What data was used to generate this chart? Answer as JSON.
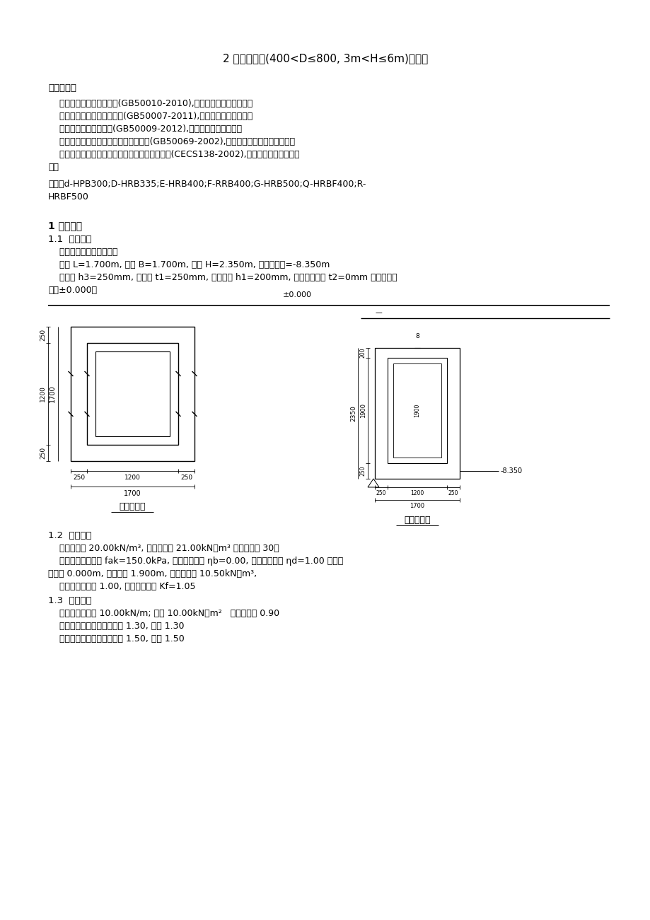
{
  "title": "2 雨水检查井(400<D≤800, 3m<H≤6m)计算书",
  "bg_color": "#ffffff",
  "text_color": "#000000",
  "exec_heading": "执行规范：",
  "exec_items": [
    "    《混凝土结构设计规范》(GB50010-2010),本文简称《混凝土规范》",
    "    《建筑地基基础设计规范》(GB50007-2011),本文简称《地基规范》",
    "    《建筑结构荷载规范》(GB50009-2012),本文简称《荷载规范》",
    "    《给水排水工程构筑物结构设计规范》(GB50069-2002),本文简称《给排水结构规范》",
    "    《给水排水工程钢筋混凝土水池结构设计规程》(CECS138-2002),本文简称《水池结构规",
    "程》"
  ],
  "steel_line1": "钢筋：d-HPB300;D-HRB335;E-HRB400;F-RRB400;G-HRB500;Q-HRBF400;R-",
  "steel_line2": "HRBF500",
  "sec1_head": "1 基本资料",
  "sec11_head": "1.1  几何信息",
  "geom_line1": "    水池类型：有顶盖全地下",
  "geom_line2": "    长度 L=1.700m, 宽度 B=1.700m, 高度 H=2.350m, 底板底标高=-8.350m",
  "geom_line3": "    池底厚 h3=250mm, 池壁厚 t1=250mm, 池顶板厚 h1=200mm, 底板外挑长度 t2=0mm 注：地面标",
  "geom_line4": "高为±0.000。",
  "sec12_head": "1.2  土水信息",
  "soil_line1": "    土天然重度 20.00kN/m³, 土饱和重度 21.00kN／m³ 土内摩擦角 30度",
  "soil_line2": "    地基承载力特征值 fak=150.0kPa, 宽度修正系数 ηb=0.00, 埋深修正系数 ηd=1.00 地下水",
  "soil_line3": "位标高 0.000m, 池内水深 1.900m, 池内水重度 10.50kN／m³,",
  "soil_line4": "    浮托力折减系数 1.00, 抗浮安全系数 Kf=1.05",
  "sec13_head": "1.3  荷载信息",
  "load_line1": "    活荷载：池顶板 10.00kN/m; 地面 10.00kN／m²   组合值系数 0.90",
  "load_line2": "    恒荷载分项系数：水池自重 1.30, 其它 1.30",
  "load_line3": "    活荷载分项系数：地下水压 1.50, 其它 1.50"
}
